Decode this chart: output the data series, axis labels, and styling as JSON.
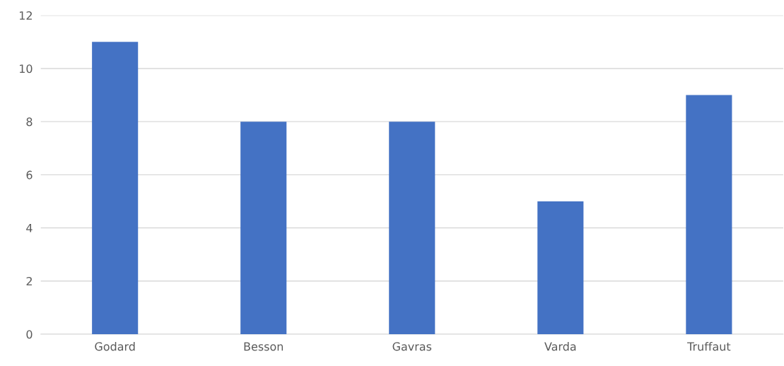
{
  "chart_data": {
    "type": "bar",
    "categories": [
      "Godard",
      "Besson",
      "Gavras",
      "Varda",
      "Truffaut"
    ],
    "values": [
      11,
      8,
      8,
      5,
      9
    ],
    "color": "#4472c4",
    "ylim": [
      0,
      12
    ],
    "yticks": [
      0,
      2,
      4,
      6,
      8,
      10,
      12
    ],
    "grid": "y"
  }
}
